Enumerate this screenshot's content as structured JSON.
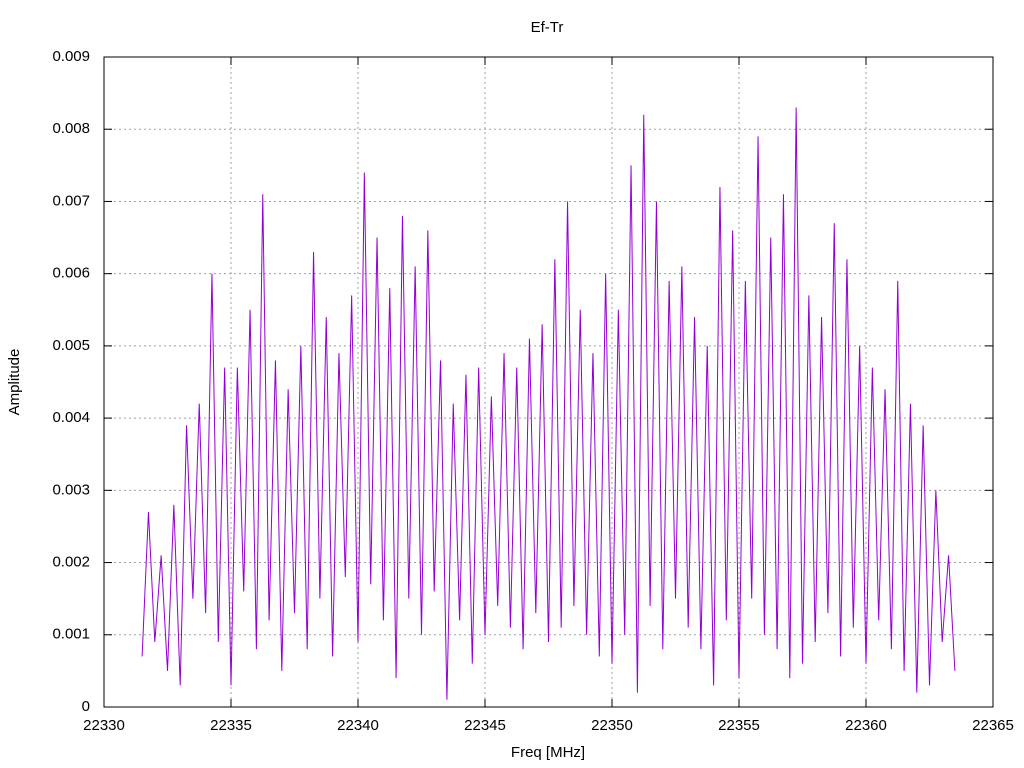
{
  "chart_data": {
    "type": "line",
    "title": "Ef-Tr",
    "x_label": "Freq [MHz]",
    "y_label": "Amplitude",
    "xlim": [
      22330,
      22365
    ],
    "ylim": [
      0,
      0.009
    ],
    "xticks": [
      22330,
      22335,
      22340,
      22345,
      22350,
      22355,
      22360,
      22365
    ],
    "yticks": [
      0,
      0.001,
      0.002,
      0.003,
      0.004,
      0.005,
      0.006,
      0.007,
      0.008,
      0.009
    ],
    "grid": true,
    "x": [
      22331.5,
      22331.75,
      22332,
      22332.25,
      22332.5,
      22332.75,
      22333,
      22333.25,
      22333.5,
      22333.75,
      22334,
      22334.25,
      22334.5,
      22334.75,
      22335,
      22335.25,
      22335.5,
      22335.75,
      22336,
      22336.25,
      22336.5,
      22336.75,
      22337,
      22337.25,
      22337.5,
      22337.75,
      22338,
      22338.25,
      22338.5,
      22338.75,
      22339,
      22339.25,
      22339.5,
      22339.75,
      22340,
      22340.25,
      22340.5,
      22340.75,
      22341,
      22341.25,
      22341.5,
      22341.75,
      22342,
      22342.25,
      22342.5,
      22342.75,
      22343,
      22343.25,
      22343.5,
      22343.75,
      22344,
      22344.25,
      22344.5,
      22344.75,
      22345,
      22345.25,
      22345.5,
      22345.75,
      22346,
      22346.25,
      22346.5,
      22346.75,
      22347,
      22347.25,
      22347.5,
      22347.75,
      22348,
      22348.25,
      22348.5,
      22348.75,
      22349,
      22349.25,
      22349.5,
      22349.75,
      22350,
      22350.25,
      22350.5,
      22350.75,
      22351,
      22351.25,
      22351.5,
      22351.75,
      22352,
      22352.25,
      22352.5,
      22352.75,
      22353,
      22353.25,
      22353.5,
      22353.75,
      22354,
      22354.25,
      22354.5,
      22354.75,
      22355,
      22355.25,
      22355.5,
      22355.75,
      22356,
      22356.25,
      22356.5,
      22356.75,
      22357,
      22357.25,
      22357.5,
      22357.75,
      22358,
      22358.25,
      22358.5,
      22358.75,
      22359,
      22359.25,
      22359.5,
      22359.75,
      22360,
      22360.25,
      22360.5,
      22360.75,
      22361,
      22361.25,
      22361.5,
      22361.75,
      22362,
      22362.25,
      22362.5,
      22362.75,
      22363,
      22363.25,
      22363.5
    ],
    "series": [
      {
        "color": "#9400d3",
        "values": [
          0.0007,
          0.0027,
          0.0009,
          0.0021,
          0.0005,
          0.0028,
          0.0003,
          0.0039,
          0.0015,
          0.0042,
          0.0013,
          0.006,
          0.0009,
          0.0047,
          0.0003,
          0.0047,
          0.0016,
          0.0055,
          0.0008,
          0.0071,
          0.0012,
          0.0048,
          0.0005,
          0.0044,
          0.0013,
          0.005,
          0.0008,
          0.0063,
          0.0015,
          0.0054,
          0.0007,
          0.0049,
          0.0018,
          0.0057,
          0.0009,
          0.0074,
          0.0017,
          0.0065,
          0.0012,
          0.0058,
          0.0004,
          0.0068,
          0.0015,
          0.0061,
          0.001,
          0.0066,
          0.0016,
          0.0048,
          0.0001,
          0.0042,
          0.0012,
          0.0046,
          0.0006,
          0.0047,
          0.001,
          0.0043,
          0.0014,
          0.0049,
          0.0011,
          0.0047,
          0.0008,
          0.0051,
          0.0013,
          0.0053,
          0.0009,
          0.0062,
          0.0011,
          0.007,
          0.0014,
          0.0055,
          0.001,
          0.0049,
          0.0007,
          0.006,
          0.0006,
          0.0055,
          0.001,
          0.0075,
          0.0002,
          0.0082,
          0.0014,
          0.007,
          0.0008,
          0.0059,
          0.0015,
          0.0061,
          0.0011,
          0.0054,
          0.0008,
          0.005,
          0.0003,
          0.0072,
          0.0012,
          0.0066,
          0.0004,
          0.0059,
          0.0015,
          0.0079,
          0.001,
          0.0065,
          0.0008,
          0.0071,
          0.0004,
          0.0083,
          0.0006,
          0.0057,
          0.0009,
          0.0054,
          0.0013,
          0.0067,
          0.0007,
          0.0062,
          0.0011,
          0.005,
          0.0006,
          0.0047,
          0.0012,
          0.0044,
          0.0008,
          0.0059,
          0.0005,
          0.0042,
          0.0002,
          0.0039,
          0.0003,
          0.003,
          0.0009,
          0.0021,
          0.0005
        ]
      }
    ]
  }
}
